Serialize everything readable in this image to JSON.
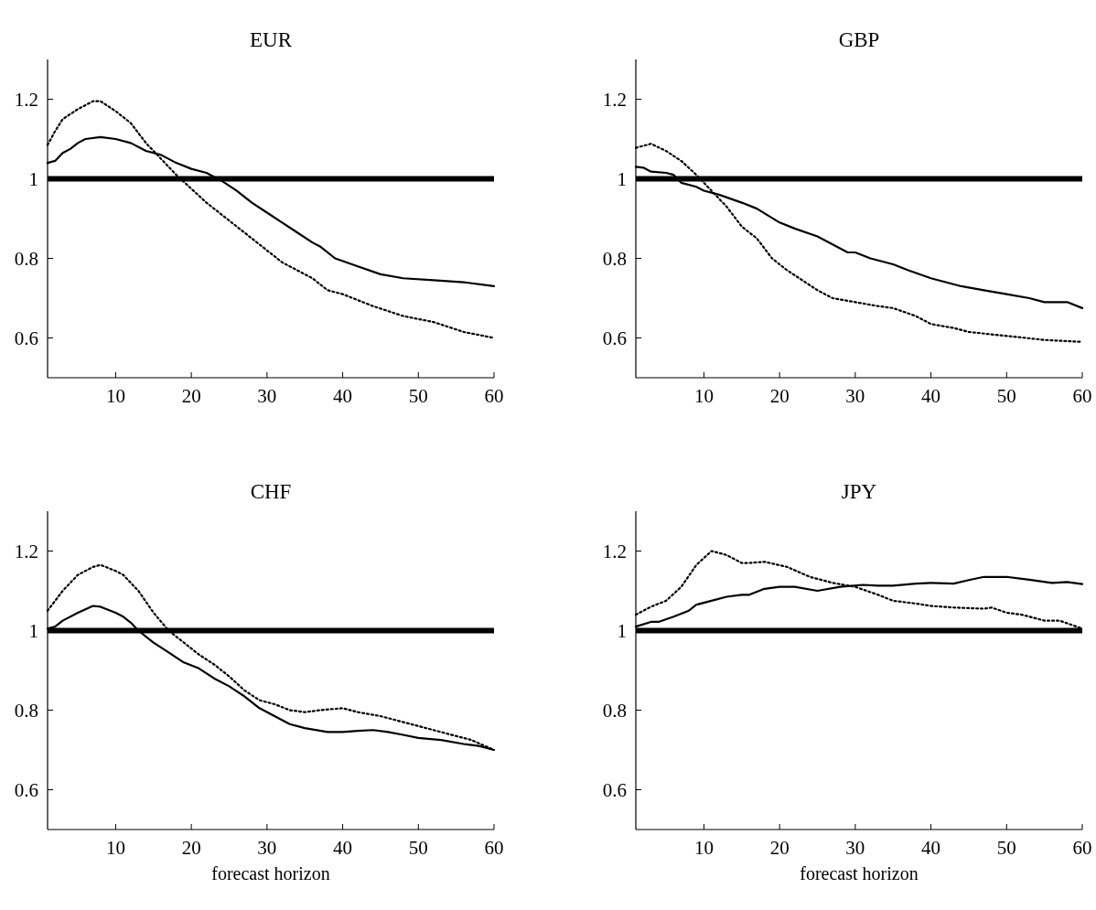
{
  "chart_data": [
    {
      "type": "line",
      "title": "EUR",
      "xlim": [
        1,
        60
      ],
      "ylim": [
        0.5,
        1.3
      ],
      "xticks": [
        10,
        20,
        30,
        40,
        50,
        60
      ],
      "yticks": [
        0.6,
        0.8,
        1,
        1.2
      ],
      "ref_lines": [
        {
          "axis": "y",
          "value": 1,
          "color": "#000000"
        }
      ],
      "series": [
        {
          "color": "#000000",
          "line_style": "solid",
          "x": [
            1,
            2,
            3,
            4,
            5,
            6,
            8,
            10,
            12,
            14,
            16,
            18,
            20,
            22,
            24,
            26,
            28,
            30,
            32,
            34,
            36,
            37,
            39,
            42,
            45,
            48,
            52,
            56,
            60
          ],
          "values": [
            1.04,
            1.045,
            1.065,
            1.075,
            1.09,
            1.1,
            1.105,
            1.1,
            1.09,
            1.07,
            1.06,
            1.04,
            1.025,
            1.015,
            0.995,
            0.97,
            0.94,
            0.915,
            0.89,
            0.865,
            0.84,
            0.83,
            0.8,
            0.78,
            0.76,
            0.75,
            0.745,
            0.74,
            0.73
          ]
        },
        {
          "color": "#000000",
          "line_style": "dotted",
          "x": [
            1,
            2,
            3,
            5,
            7,
            8,
            10,
            12,
            14,
            16,
            18,
            20,
            22,
            24,
            26,
            28,
            30,
            32,
            34,
            36,
            38,
            40,
            44,
            48,
            52,
            56,
            60
          ],
          "values": [
            1.085,
            1.12,
            1.15,
            1.175,
            1.195,
            1.195,
            1.17,
            1.14,
            1.09,
            1.05,
            1.01,
            0.975,
            0.94,
            0.91,
            0.88,
            0.85,
            0.82,
            0.79,
            0.77,
            0.75,
            0.72,
            0.71,
            0.68,
            0.655,
            0.64,
            0.615,
            0.6
          ]
        }
      ]
    },
    {
      "type": "line",
      "title": "GBP",
      "xlim": [
        1,
        60
      ],
      "ylim": [
        0.5,
        1.3
      ],
      "xticks": [
        10,
        20,
        30,
        40,
        50,
        60
      ],
      "yticks": [
        0.6,
        0.8,
        1,
        1.2
      ],
      "ref_lines": [
        {
          "axis": "y",
          "value": 1,
          "color": "#000000"
        }
      ],
      "series": [
        {
          "color": "#000000",
          "line_style": "solid",
          "x": [
            1,
            2,
            3,
            5,
            6,
            7,
            9,
            10,
            12,
            15,
            17,
            20,
            22,
            25,
            27,
            29,
            30,
            32,
            35,
            37,
            40,
            44,
            47,
            50,
            53,
            55,
            58,
            60
          ],
          "values": [
            1.03,
            1.028,
            1.018,
            1.015,
            1.01,
            0.99,
            0.98,
            0.97,
            0.96,
            0.94,
            0.925,
            0.89,
            0.875,
            0.855,
            0.835,
            0.815,
            0.815,
            0.8,
            0.785,
            0.77,
            0.75,
            0.73,
            0.72,
            0.71,
            0.7,
            0.69,
            0.69,
            0.675
          ]
        },
        {
          "color": "#000000",
          "line_style": "dotted",
          "x": [
            1,
            3,
            5,
            7,
            9,
            11,
            13,
            15,
            17,
            19,
            21,
            23,
            25,
            27,
            30,
            33,
            35,
            38,
            40,
            43,
            45,
            50,
            55,
            60
          ],
          "values": [
            1.078,
            1.088,
            1.07,
            1.045,
            1.01,
            0.97,
            0.93,
            0.88,
            0.85,
            0.8,
            0.77,
            0.745,
            0.72,
            0.7,
            0.69,
            0.68,
            0.675,
            0.655,
            0.635,
            0.625,
            0.615,
            0.605,
            0.595,
            0.59
          ]
        }
      ]
    },
    {
      "type": "line",
      "title": "CHF",
      "xlabel": "forecast horizon",
      "xlim": [
        1,
        60
      ],
      "ylim": [
        0.5,
        1.3
      ],
      "xticks": [
        10,
        20,
        30,
        40,
        50,
        60
      ],
      "yticks": [
        0.6,
        0.8,
        1,
        1.2
      ],
      "ref_lines": [
        {
          "axis": "y",
          "value": 1,
          "color": "#000000"
        }
      ],
      "series": [
        {
          "color": "#000000",
          "line_style": "solid",
          "x": [
            1,
            2,
            3,
            5,
            7,
            8,
            10,
            11,
            12,
            13,
            15,
            17,
            19,
            21,
            23,
            25,
            27,
            29,
            31,
            33,
            35,
            38,
            40,
            42,
            44,
            46,
            48,
            50,
            53,
            56,
            58,
            60
          ],
          "values": [
            1.005,
            1.01,
            1.025,
            1.045,
            1.062,
            1.06,
            1.045,
            1.035,
            1.02,
            1.0,
            0.97,
            0.945,
            0.92,
            0.905,
            0.88,
            0.86,
            0.835,
            0.805,
            0.785,
            0.765,
            0.755,
            0.745,
            0.745,
            0.748,
            0.75,
            0.745,
            0.738,
            0.73,
            0.725,
            0.715,
            0.71,
            0.7
          ]
        },
        {
          "color": "#000000",
          "line_style": "dotted",
          "x": [
            1,
            2,
            3,
            5,
            7,
            8,
            10,
            11,
            13,
            15,
            17,
            19,
            21,
            23,
            25,
            27,
            29,
            31,
            33,
            35,
            37,
            40,
            42,
            45,
            48,
            51,
            54,
            57,
            60
          ],
          "values": [
            1.05,
            1.075,
            1.1,
            1.14,
            1.16,
            1.165,
            1.15,
            1.14,
            1.1,
            1.045,
            1.0,
            0.97,
            0.94,
            0.915,
            0.885,
            0.85,
            0.825,
            0.815,
            0.8,
            0.795,
            0.8,
            0.805,
            0.795,
            0.785,
            0.77,
            0.755,
            0.74,
            0.725,
            0.7
          ]
        }
      ]
    },
    {
      "type": "line",
      "title": "JPY",
      "xlabel": "forecast horizon",
      "xlim": [
        1,
        60
      ],
      "ylim": [
        0.5,
        1.3
      ],
      "xticks": [
        10,
        20,
        30,
        40,
        50,
        60
      ],
      "yticks": [
        0.6,
        0.8,
        1,
        1.2
      ],
      "ref_lines": [
        {
          "axis": "y",
          "value": 1,
          "color": "#000000"
        }
      ],
      "series": [
        {
          "color": "#000000",
          "line_style": "solid",
          "x": [
            1,
            3,
            4,
            6,
            8,
            9,
            11,
            13,
            15,
            16,
            18,
            20,
            22,
            25,
            28,
            31,
            33,
            35,
            38,
            40,
            43,
            45,
            47,
            50,
            53,
            56,
            58,
            60
          ],
          "values": [
            1.01,
            1.022,
            1.022,
            1.035,
            1.05,
            1.065,
            1.075,
            1.085,
            1.09,
            1.09,
            1.105,
            1.11,
            1.11,
            1.1,
            1.11,
            1.115,
            1.113,
            1.113,
            1.118,
            1.12,
            1.118,
            1.127,
            1.135,
            1.135,
            1.128,
            1.12,
            1.122,
            1.117
          ]
        },
        {
          "color": "#000000",
          "line_style": "dotted",
          "x": [
            1,
            3,
            5,
            7,
            9,
            11,
            13,
            15,
            16,
            18,
            21,
            24,
            27,
            30,
            33,
            35,
            38,
            40,
            43,
            47,
            48,
            50,
            52,
            55,
            57,
            60
          ],
          "values": [
            1.04,
            1.06,
            1.075,
            1.11,
            1.165,
            1.2,
            1.19,
            1.17,
            1.17,
            1.173,
            1.16,
            1.135,
            1.12,
            1.11,
            1.09,
            1.075,
            1.068,
            1.062,
            1.058,
            1.055,
            1.058,
            1.045,
            1.04,
            1.025,
            1.025,
            1.005
          ]
        }
      ]
    }
  ]
}
